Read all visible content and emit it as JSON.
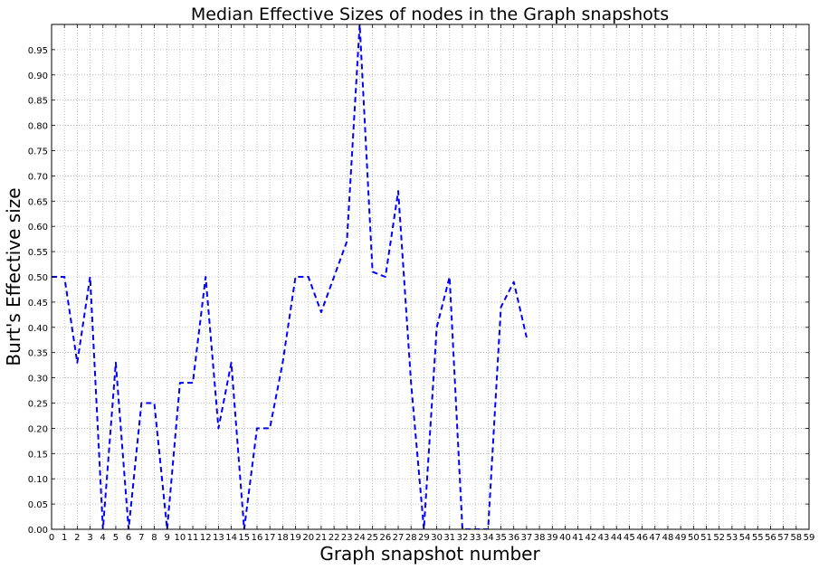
{
  "chart_data": {
    "type": "line",
    "title": "Median Effective Sizes of nodes in the Graph snapshots",
    "xlabel": "Graph snapshot number",
    "ylabel": "Burt's Effective size",
    "xlim": [
      0,
      59
    ],
    "ylim": [
      0,
      1.0
    ],
    "x_ticks": [
      "0",
      "1",
      "2",
      "3",
      "4",
      "5",
      "6",
      "7",
      "8",
      "9",
      "10",
      "11",
      "12",
      "13",
      "14",
      "15",
      "16",
      "17",
      "18",
      "19",
      "20",
      "21",
      "22",
      "23",
      "24",
      "25",
      "26",
      "27",
      "28",
      "29",
      "30",
      "31",
      "32",
      "33",
      "34",
      "35",
      "36",
      "37",
      "38",
      "39",
      "40",
      "41",
      "42",
      "43",
      "44",
      "45",
      "46",
      "47",
      "48",
      "49",
      "50",
      "51",
      "52",
      "53",
      "54",
      "55",
      "56",
      "57",
      "58",
      "59"
    ],
    "y_ticks": [
      "0.00",
      "0.05",
      "0.10",
      "0.15",
      "0.20",
      "0.25",
      "0.30",
      "0.35",
      "0.40",
      "0.45",
      "0.50",
      "0.55",
      "0.60",
      "0.65",
      "0.70",
      "0.75",
      "0.80",
      "0.85",
      "0.90",
      "0.95"
    ],
    "grid": true,
    "line_style": "dashed",
    "series": [
      {
        "color": "#0000ff",
        "x": [
          0,
          1,
          2,
          3,
          4,
          5,
          6,
          7,
          8,
          9,
          10,
          11,
          12,
          13,
          14,
          15,
          16,
          17,
          18,
          19,
          20,
          21,
          22,
          23,
          24,
          25,
          26,
          27,
          28,
          29,
          30,
          31,
          32,
          33,
          34,
          35,
          36,
          37
        ],
        "y": [
          0.5,
          0.5,
          0.33,
          0.5,
          0.0,
          0.33,
          0.0,
          0.25,
          0.25,
          0.0,
          0.29,
          0.29,
          0.5,
          0.2,
          0.33,
          0.0,
          0.2,
          0.2,
          0.33,
          0.5,
          0.5,
          0.43,
          0.5,
          0.57,
          1.0,
          0.51,
          0.5,
          0.67,
          0.29,
          0.0,
          0.4,
          0.5,
          0.0,
          0.0,
          0.0,
          0.44,
          0.49,
          0.38
        ]
      }
    ]
  }
}
